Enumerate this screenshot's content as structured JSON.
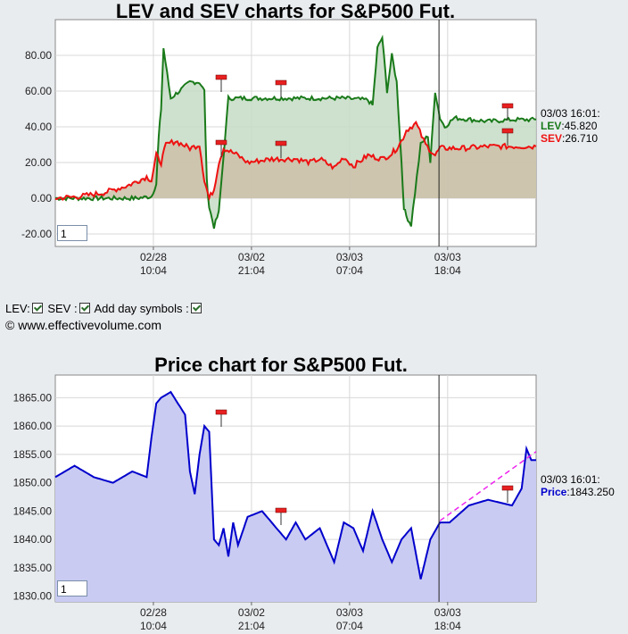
{
  "chart_data": [
    {
      "type": "line",
      "title": "LEV and SEV charts for S&P500 Fut.",
      "y_ticks": [
        "80.00",
        "60.00",
        "40.00",
        "20.00",
        "0.00",
        "-20.00"
      ],
      "y_tick_values": [
        80,
        60,
        40,
        20,
        0,
        -20
      ],
      "ylim": [
        -27,
        100
      ],
      "x_ticks": [
        {
          "l1": "02/28",
          "l2": "10:04"
        },
        {
          "l1": "03/02",
          "l2": "21:04"
        },
        {
          "l1": "03/03",
          "l2": "07:04"
        },
        {
          "l1": "03/03",
          "l2": "18:04"
        }
      ],
      "x_tick_positions": [
        0.204,
        0.408,
        0.612,
        0.816
      ],
      "cursor_at": 0.798,
      "series": [
        {
          "name": "LEV",
          "color": "#1a7a1a",
          "fill": "#c6dcc6",
          "x": [
            0,
            0.1,
            0.17,
            0.2,
            0.21,
            0.215,
            0.22,
            0.225,
            0.24,
            0.28,
            0.29,
            0.3,
            0.31,
            0.315,
            0.32,
            0.33,
            0.34,
            0.36,
            0.4,
            0.5,
            0.6,
            0.65,
            0.66,
            0.67,
            0.68,
            0.69,
            0.7,
            0.71,
            0.72,
            0.725,
            0.73,
            0.74,
            0.76,
            0.775,
            0.78,
            0.79,
            0.8,
            0.81,
            0.83,
            0.9,
            0.95,
            1.0
          ],
          "y": [
            0,
            0,
            0,
            1,
            8,
            34,
            50,
            84,
            56,
            65,
            65,
            65,
            60,
            10,
            -5,
            -16,
            -8,
            56,
            56,
            56,
            56,
            55,
            52,
            84,
            90,
            60,
            80,
            65,
            20,
            -5,
            -10,
            -15,
            30,
            35,
            20,
            60,
            45,
            40,
            45,
            43,
            44,
            44
          ]
        },
        {
          "name": "SEV",
          "color": "#ee1111",
          "fill": "#cdbfa8",
          "x": [
            0,
            0.05,
            0.1,
            0.15,
            0.19,
            0.2,
            0.21,
            0.22,
            0.23,
            0.25,
            0.28,
            0.3,
            0.31,
            0.32,
            0.33,
            0.34,
            0.35,
            0.38,
            0.4,
            0.45,
            0.5,
            0.53,
            0.55,
            0.58,
            0.6,
            0.62,
            0.65,
            0.68,
            0.7,
            0.71,
            0.72,
            0.73,
            0.75,
            0.77,
            0.79,
            0.8,
            0.82,
            0.85,
            0.9,
            0.95,
            1.0
          ],
          "y": [
            0,
            1,
            3,
            7,
            12,
            10,
            24,
            20,
            30,
            32,
            28,
            30,
            10,
            0,
            5,
            20,
            28,
            24,
            20,
            22,
            22,
            20,
            22,
            17,
            23,
            18,
            24,
            22,
            25,
            28,
            32,
            38,
            42,
            30,
            24,
            28,
            28,
            28,
            29,
            29,
            29
          ]
        }
      ]
    },
    {
      "type": "area",
      "title": "Price chart for S&P500 Fut.",
      "y_ticks": [
        "1865.00",
        "1860.00",
        "1855.00",
        "1850.00",
        "1845.00",
        "1840.00",
        "1835.00",
        "1830.00"
      ],
      "y_tick_values": [
        1865,
        1860,
        1855,
        1850,
        1845,
        1840,
        1835,
        1830
      ],
      "ylim": [
        1829,
        1869
      ],
      "x_ticks": [
        {
          "l1": "02/28",
          "l2": "10:04"
        },
        {
          "l1": "03/02",
          "l2": "21:04"
        },
        {
          "l1": "03/03",
          "l2": "07:04"
        },
        {
          "l1": "03/03",
          "l2": "18:04"
        }
      ],
      "x_tick_positions": [
        0.204,
        0.408,
        0.612,
        0.816
      ],
      "cursor_at": 0.798,
      "series": [
        {
          "name": "Price",
          "color": "#0000cc",
          "fill": "#c9cbf2",
          "x": [
            0,
            0.04,
            0.08,
            0.12,
            0.16,
            0.19,
            0.2,
            0.21,
            0.22,
            0.24,
            0.27,
            0.28,
            0.29,
            0.3,
            0.31,
            0.32,
            0.33,
            0.34,
            0.35,
            0.36,
            0.37,
            0.38,
            0.4,
            0.43,
            0.46,
            0.48,
            0.5,
            0.52,
            0.55,
            0.58,
            0.6,
            0.62,
            0.64,
            0.66,
            0.68,
            0.7,
            0.72,
            0.74,
            0.76,
            0.78,
            0.8,
            0.82,
            0.86,
            0.9,
            0.95,
            0.97,
            0.98,
            0.99,
            1.0
          ],
          "y": [
            1851,
            1853,
            1851,
            1850,
            1852,
            1851,
            1858,
            1864,
            1865,
            1866,
            1862,
            1852,
            1848,
            1855,
            1860,
            1859,
            1840,
            1839,
            1842,
            1837,
            1843,
            1839,
            1844,
            1845,
            1842,
            1840,
            1843,
            1840,
            1842,
            1836,
            1843,
            1842,
            1838,
            1845,
            1840,
            1836,
            1840,
            1842,
            1833,
            1840,
            1843,
            1843,
            1846,
            1847,
            1846,
            1849,
            1856,
            1854,
            1854
          ]
        },
        {
          "name": "trend",
          "color": "#ee22ee",
          "dashed": true,
          "x": [
            0.8,
            1.0
          ],
          "y": [
            1843.3,
            1855.5
          ]
        }
      ]
    }
  ],
  "legend1": {
    "time": "03/03 16:01:",
    "lev_label": "LEV",
    "lev_value": ":45.820",
    "sev_label": "SEV",
    "sev_value": ":26.710"
  },
  "legend2": {
    "time": "03/03 16:01:",
    "price_label": "Price",
    "price_value": ":1843.250"
  },
  "controls": {
    "lev": "LEV:",
    "sev": "SEV :",
    "day_symbols": "Add day symbols :"
  },
  "copyright": "© www.effectivevolume.com",
  "zoom1": "1",
  "zoom2": "1"
}
